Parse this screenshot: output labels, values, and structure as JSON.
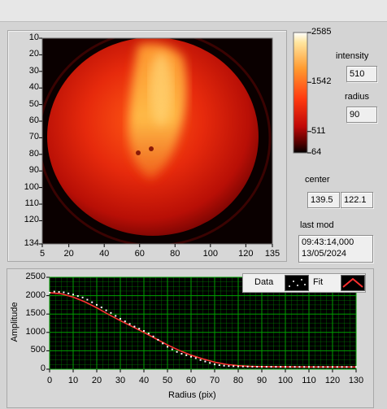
{
  "image_panel": {
    "y_ticks": [
      "10",
      "20",
      "30",
      "40",
      "50",
      "60",
      "70",
      "80",
      "90",
      "100",
      "110",
      "120",
      "134"
    ],
    "x_ticks": [
      "5",
      "20",
      "40",
      "60",
      "80",
      "100",
      "120",
      "135"
    ],
    "y_range": [
      10,
      134
    ],
    "x_range": [
      5,
      135
    ]
  },
  "colorbar": {
    "ticks": [
      "2585",
      "1542",
      "511",
      "64"
    ],
    "tick_values": [
      2585,
      1542,
      511,
      64
    ],
    "min": 64,
    "max": 2585
  },
  "indicators": {
    "intensity_label": "intensity",
    "intensity_value": "510",
    "radius_label": "radius",
    "radius_value": "90",
    "center_label": "center",
    "center_x": "139.5",
    "center_y": "122.1",
    "last_mod_label": "last mod",
    "last_mod_time": "09:43:14,000",
    "last_mod_date": "13/05/2024"
  },
  "chart_data": {
    "type": "scatter",
    "xlabel": "Radius (pix)",
    "ylabel": "Amplitude",
    "xlim": [
      0,
      130
    ],
    "ylim": [
      0,
      2500
    ],
    "x_ticks": [
      0,
      10,
      20,
      30,
      40,
      50,
      60,
      70,
      80,
      90,
      100,
      110,
      120,
      130
    ],
    "y_ticks": [
      0,
      500,
      1000,
      1500,
      2000,
      2500
    ],
    "grid": true,
    "legend_position": "top-right",
    "legend": [
      "Data",
      "Fit"
    ],
    "series": [
      {
        "name": "Data",
        "style": "points",
        "color": "#ffffff",
        "x": [
          0,
          2,
          4,
          6,
          8,
          10,
          12,
          14,
          16,
          18,
          20,
          22,
          24,
          26,
          28,
          30,
          32,
          34,
          36,
          38,
          40,
          42,
          44,
          46,
          48,
          50,
          52,
          54,
          56,
          58,
          60,
          62,
          64,
          66,
          68,
          70,
          72,
          74,
          76,
          78,
          80,
          82,
          84,
          86,
          88,
          90,
          92,
          94,
          96,
          98,
          100,
          102,
          104,
          106,
          108,
          110,
          112,
          114,
          116,
          118,
          120,
          122,
          124,
          126,
          128,
          130
        ],
        "y": [
          2080,
          2110,
          2100,
          2090,
          2060,
          2030,
          1990,
          1950,
          1890,
          1820,
          1750,
          1680,
          1600,
          1530,
          1450,
          1370,
          1300,
          1230,
          1160,
          1100,
          1040,
          970,
          890,
          800,
          700,
          610,
          540,
          470,
          420,
          380,
          340,
          300,
          250,
          210,
          170,
          130,
          110,
          95,
          85,
          80,
          75,
          72,
          70,
          68,
          66,
          65,
          64,
          64,
          63,
          63,
          62,
          62,
          62,
          61,
          61,
          61,
          60,
          60,
          60,
          60,
          60,
          60,
          60,
          60,
          60,
          60
        ]
      },
      {
        "name": "Fit",
        "style": "line",
        "color": "#ff3030",
        "x": [
          0,
          5,
          10,
          15,
          20,
          25,
          30,
          35,
          40,
          45,
          50,
          55,
          60,
          65,
          70,
          75,
          80,
          85,
          90,
          95,
          100,
          105,
          110,
          115,
          120,
          125,
          130
        ],
        "y": [
          2080,
          2050,
          1960,
          1830,
          1670,
          1490,
          1320,
          1160,
          1000,
          830,
          660,
          510,
          380,
          280,
          190,
          130,
          95,
          75,
          68,
          64,
          62,
          61,
          60,
          60,
          60,
          60,
          60
        ]
      }
    ]
  },
  "colors": {
    "plot_background": "#000000",
    "grid": "#00a000",
    "fit_line": "#ff3030",
    "data_points": "#ffffff"
  }
}
